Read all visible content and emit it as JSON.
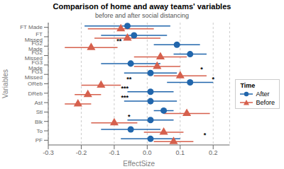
{
  "chart_data": {
    "type": "scatter",
    "orientation": "horizontal",
    "title": "Comparison of home and away teams' variables",
    "subtitle": "before and after social distancing",
    "xlabel": "EffectSize",
    "ylabel": "Variables",
    "categories": [
      "FT Made",
      "FT Missed",
      "FG2 Made",
      "FG2 Missed",
      "FG3 Made",
      "FG3 Missed",
      "OReb",
      "DReb",
      "Ast",
      "Stl",
      "Blk",
      "To",
      "PF"
    ],
    "series": [
      {
        "name": "After",
        "color": "#2166ac",
        "marker": "circle",
        "values": [
          -0.06,
          -0.04,
          0.09,
          0.13,
          -0.05,
          0.01,
          0.13,
          0.01,
          0.01,
          0.05,
          0.01,
          -0.05,
          0.01
        ],
        "low": [
          -0.19,
          -0.14,
          0.02,
          0.08,
          -0.14,
          -0.07,
          0.06,
          -0.06,
          -0.07,
          0.02,
          -0.06,
          -0.14,
          -0.08
        ],
        "high": [
          0.07,
          0.06,
          0.16,
          0.18,
          0.04,
          0.09,
          0.2,
          0.08,
          0.09,
          0.08,
          0.08,
          0.04,
          0.1
        ]
      },
      {
        "name": "Before",
        "color": "#d6604d",
        "marker": "triangle",
        "values": [
          -0.08,
          -0.06,
          -0.17,
          0.04,
          0.03,
          0.1,
          -0.14,
          -0.18,
          -0.21,
          0.12,
          -0.1,
          0.05,
          0.08
        ],
        "low": [
          -0.18,
          -0.16,
          -0.25,
          -0.04,
          -0.04,
          0.02,
          -0.2,
          -0.22,
          -0.25,
          0.05,
          -0.17,
          -0.01,
          0.02
        ],
        "high": [
          0.02,
          0.04,
          -0.09,
          0.12,
          0.1,
          0.18,
          -0.08,
          -0.14,
          -0.17,
          0.19,
          -0.03,
          0.11,
          0.14
        ]
      }
    ],
    "annotations": [
      {
        "text": "**",
        "x": -0.085,
        "category": "FG2 Made"
      },
      {
        "text": "*",
        "x": 0.165,
        "category": "FG3 Missed"
      },
      {
        "text": "**",
        "x": -0.055,
        "category": "OReb"
      },
      {
        "text": "*",
        "x": 0.2,
        "category": "OReb"
      },
      {
        "text": "***",
        "x": -0.068,
        "category": "DReb"
      },
      {
        "text": "***",
        "x": -0.068,
        "category": "Ast"
      },
      {
        "text": "*",
        "x": -0.055,
        "category": "Blk"
      },
      {
        "text": "*",
        "x": 0.175,
        "category": "PF"
      }
    ],
    "xlim": [
      -0.3,
      0.25
    ],
    "xticks": [
      -0.3,
      -0.2,
      -0.1,
      {
        "value": 0,
        "label": "0.0"
      },
      0.1,
      0.2
    ],
    "grid": true,
    "legend": "right",
    "legend_title": "Time"
  }
}
